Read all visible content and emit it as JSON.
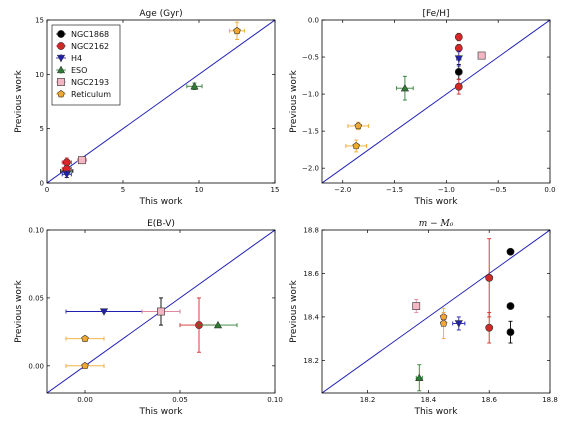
{
  "chart_data": [
    {
      "type": "scatter",
      "title": "Age (Gyr)",
      "xlabel": "This work",
      "ylabel": "Previous work",
      "xlim": [
        0,
        15
      ],
      "ylim": [
        0,
        15
      ],
      "xticks": [
        "0",
        "5",
        "10",
        "15"
      ],
      "yticks": [
        "0",
        "5",
        "10",
        "15"
      ],
      "identity_line": true,
      "legend": "top-left",
      "series": [
        {
          "name": "NGC1868",
          "color": "#000000",
          "marker": "o",
          "points": [
            {
              "x": 1.3,
              "y": 1.1,
              "xerr": 0.4,
              "yerr": 0.6
            }
          ]
        },
        {
          "name": "NGC2162",
          "color": "#d62728",
          "marker": "o",
          "points": [
            {
              "x": 1.3,
              "y": 1.9,
              "xerr": 0.3,
              "yerr": 0.4
            },
            {
              "x": 1.3,
              "y": 1.3,
              "xerr": 0.3,
              "yerr": 0.4
            }
          ]
        },
        {
          "name": "H4",
          "color": "#1f1fb0",
          "marker": "v",
          "points": [
            {
              "x": 1.3,
              "y": 0.8,
              "xerr": 0.3,
              "yerr": 0.3
            }
          ]
        },
        {
          "name": "ESO",
          "color": "#2e7d32",
          "marker": "^",
          "points": [
            {
              "x": 9.7,
              "y": 8.9,
              "xerr": 0.5,
              "yerr": 0.3
            }
          ]
        },
        {
          "name": "NGC2193",
          "color": "#f4b6c2",
          "marker": "s",
          "points": [
            {
              "x": 2.3,
              "y": 2.1,
              "xerr": 0.3,
              "yerr": 0.3
            }
          ]
        },
        {
          "name": "Reticulum",
          "color": "#f0a830",
          "marker": "p",
          "points": [
            {
              "x": 12.5,
              "y": 14.0,
              "xerr": 0.5,
              "yerr": 0.8
            }
          ]
        }
      ]
    },
    {
      "type": "scatter",
      "title": "[Fe/H]",
      "xlabel": "This work",
      "ylabel": "Previous work",
      "xlim": [
        -2.2,
        0.0
      ],
      "ylim": [
        -2.2,
        0.0
      ],
      "xticks": [
        "−2.0",
        "−1.5",
        "−1.0",
        "−0.5",
        "0.0"
      ],
      "yticks": [
        "−2.0",
        "−1.5",
        "−1.0",
        "−0.5",
        "0.0"
      ],
      "identity_line": true,
      "series": [
        {
          "name": "NGC1868",
          "color": "#000000",
          "marker": "o",
          "points": [
            {
              "x": -0.88,
              "y": -0.7,
              "xerr": 0.02,
              "yerr": 0.1
            }
          ]
        },
        {
          "name": "NGC2162",
          "color": "#d62728",
          "marker": "o",
          "points": [
            {
              "x": -0.88,
              "y": -0.23,
              "xerr": 0.02,
              "yerr": 0.05
            },
            {
              "x": -0.88,
              "y": -0.38,
              "xerr": 0.02,
              "yerr": 0.05
            },
            {
              "x": -0.88,
              "y": -0.9,
              "xerr": 0.02,
              "yerr": 0.1
            }
          ]
        },
        {
          "name": "H4",
          "color": "#1f1fb0",
          "marker": "v",
          "points": [
            {
              "x": -0.88,
              "y": -0.52,
              "xerr": 0.02,
              "yerr": 0.1
            }
          ]
        },
        {
          "name": "ESO",
          "color": "#2e7d32",
          "marker": "^",
          "points": [
            {
              "x": -1.4,
              "y": -0.92,
              "xerr": 0.08,
              "yerr": 0.16
            }
          ]
        },
        {
          "name": "NGC2193",
          "color": "#f4b6c2",
          "marker": "s",
          "points": [
            {
              "x": -0.66,
              "y": -0.48,
              "xerr": 0.03,
              "yerr": 0.03
            }
          ]
        },
        {
          "name": "Reticulum",
          "color": "#f0a830",
          "marker": "p",
          "points": [
            {
              "x": -1.85,
              "y": -1.43,
              "xerr": 0.1,
              "yerr": 0.05
            },
            {
              "x": -1.87,
              "y": -1.7,
              "xerr": 0.1,
              "yerr": 0.08
            }
          ]
        }
      ]
    },
    {
      "type": "scatter",
      "title": "E(B-V)",
      "xlabel": "This work",
      "ylabel": "Previous work",
      "xlim": [
        -0.02,
        0.1
      ],
      "ylim": [
        -0.02,
        0.1
      ],
      "xticks": [
        "0.00",
        "0.05",
        "0.10"
      ],
      "yticks": [
        "0.00",
        "0.05",
        "0.10"
      ],
      "identity_line": true,
      "series": [
        {
          "name": "NGC1868",
          "color": "#000000",
          "marker": "o",
          "points": [
            {
              "x": 0.04,
              "y": 0.04,
              "xerr": 0.01,
              "yerr": 0.01
            }
          ]
        },
        {
          "name": "NGC2162",
          "color": "#d62728",
          "marker": "o",
          "points": [
            {
              "x": 0.06,
              "y": 0.03,
              "xerr": 0.01,
              "yerr": 0.02
            }
          ]
        },
        {
          "name": "H4",
          "color": "#1f1fb0",
          "marker": "v",
          "points": [
            {
              "x": 0.01,
              "y": 0.04,
              "xerr": 0.02,
              "yerr": 0.0
            }
          ]
        },
        {
          "name": "ESO",
          "color": "#2e7d32",
          "marker": "^",
          "points": [
            {
              "x": 0.07,
              "y": 0.03,
              "xerr": 0.01,
              "yerr": 0.0
            }
          ]
        },
        {
          "name": "NGC2193",
          "color": "#f4b6c2",
          "marker": "s",
          "points": [
            {
              "x": 0.04,
              "y": 0.04,
              "xerr": 0.01,
              "yerr": 0.0
            }
          ]
        },
        {
          "name": "Reticulum",
          "color": "#f0a830",
          "marker": "p",
          "points": [
            {
              "x": 0.0,
              "y": 0.02,
              "xerr": 0.01,
              "yerr": 0.0
            },
            {
              "x": 0.0,
              "y": 0.0,
              "xerr": 0.01,
              "yerr": 0.0
            }
          ]
        }
      ]
    },
    {
      "type": "scatter",
      "title": "m − M₀",
      "xlabel": "This work",
      "ylabel": "Previous work",
      "xlim": [
        18.05,
        18.8
      ],
      "ylim": [
        18.05,
        18.8
      ],
      "xticks": [
        "18.2",
        "18.4",
        "18.6",
        "18.8"
      ],
      "yticks": [
        "18.2",
        "18.4",
        "18.6",
        "18.8"
      ],
      "identity_line": true,
      "series": [
        {
          "name": "NGC1868",
          "color": "#000000",
          "marker": "o",
          "points": [
            {
              "x": 18.67,
              "y": 18.7,
              "xerr": 0.01,
              "yerr": 0.0
            },
            {
              "x": 18.67,
              "y": 18.45,
              "xerr": 0.01,
              "yerr": 0.0
            },
            {
              "x": 18.67,
              "y": 18.33,
              "xerr": 0.01,
              "yerr": 0.05
            }
          ]
        },
        {
          "name": "NGC2162",
          "color": "#d62728",
          "marker": "o",
          "points": [
            {
              "x": 18.6,
              "y": 18.58,
              "xerr": 0.0,
              "yerr": 0.18
            },
            {
              "x": 18.6,
              "y": 18.35,
              "xerr": 0.0,
              "yerr": 0.07
            }
          ]
        },
        {
          "name": "H4",
          "color": "#1f1fb0",
          "marker": "v",
          "points": [
            {
              "x": 18.5,
              "y": 18.37,
              "xerr": 0.02,
              "yerr": 0.03
            }
          ]
        },
        {
          "name": "ESO",
          "color": "#2e7d32",
          "marker": "^",
          "points": [
            {
              "x": 18.37,
              "y": 18.12,
              "xerr": 0.01,
              "yerr": 0.06
            }
          ]
        },
        {
          "name": "NGC2193",
          "color": "#f4b6c2",
          "marker": "s",
          "points": [
            {
              "x": 18.36,
              "y": 18.45,
              "xerr": 0.0,
              "yerr": 0.03
            }
          ]
        },
        {
          "name": "Reticulum",
          "color": "#f0a830",
          "marker": "p",
          "points": [
            {
              "x": 18.45,
              "y": 18.4,
              "xerr": 0.0,
              "yerr": 0.02
            },
            {
              "x": 18.45,
              "y": 18.37,
              "xerr": 0.0,
              "yerr": 0.07
            }
          ]
        }
      ]
    }
  ]
}
